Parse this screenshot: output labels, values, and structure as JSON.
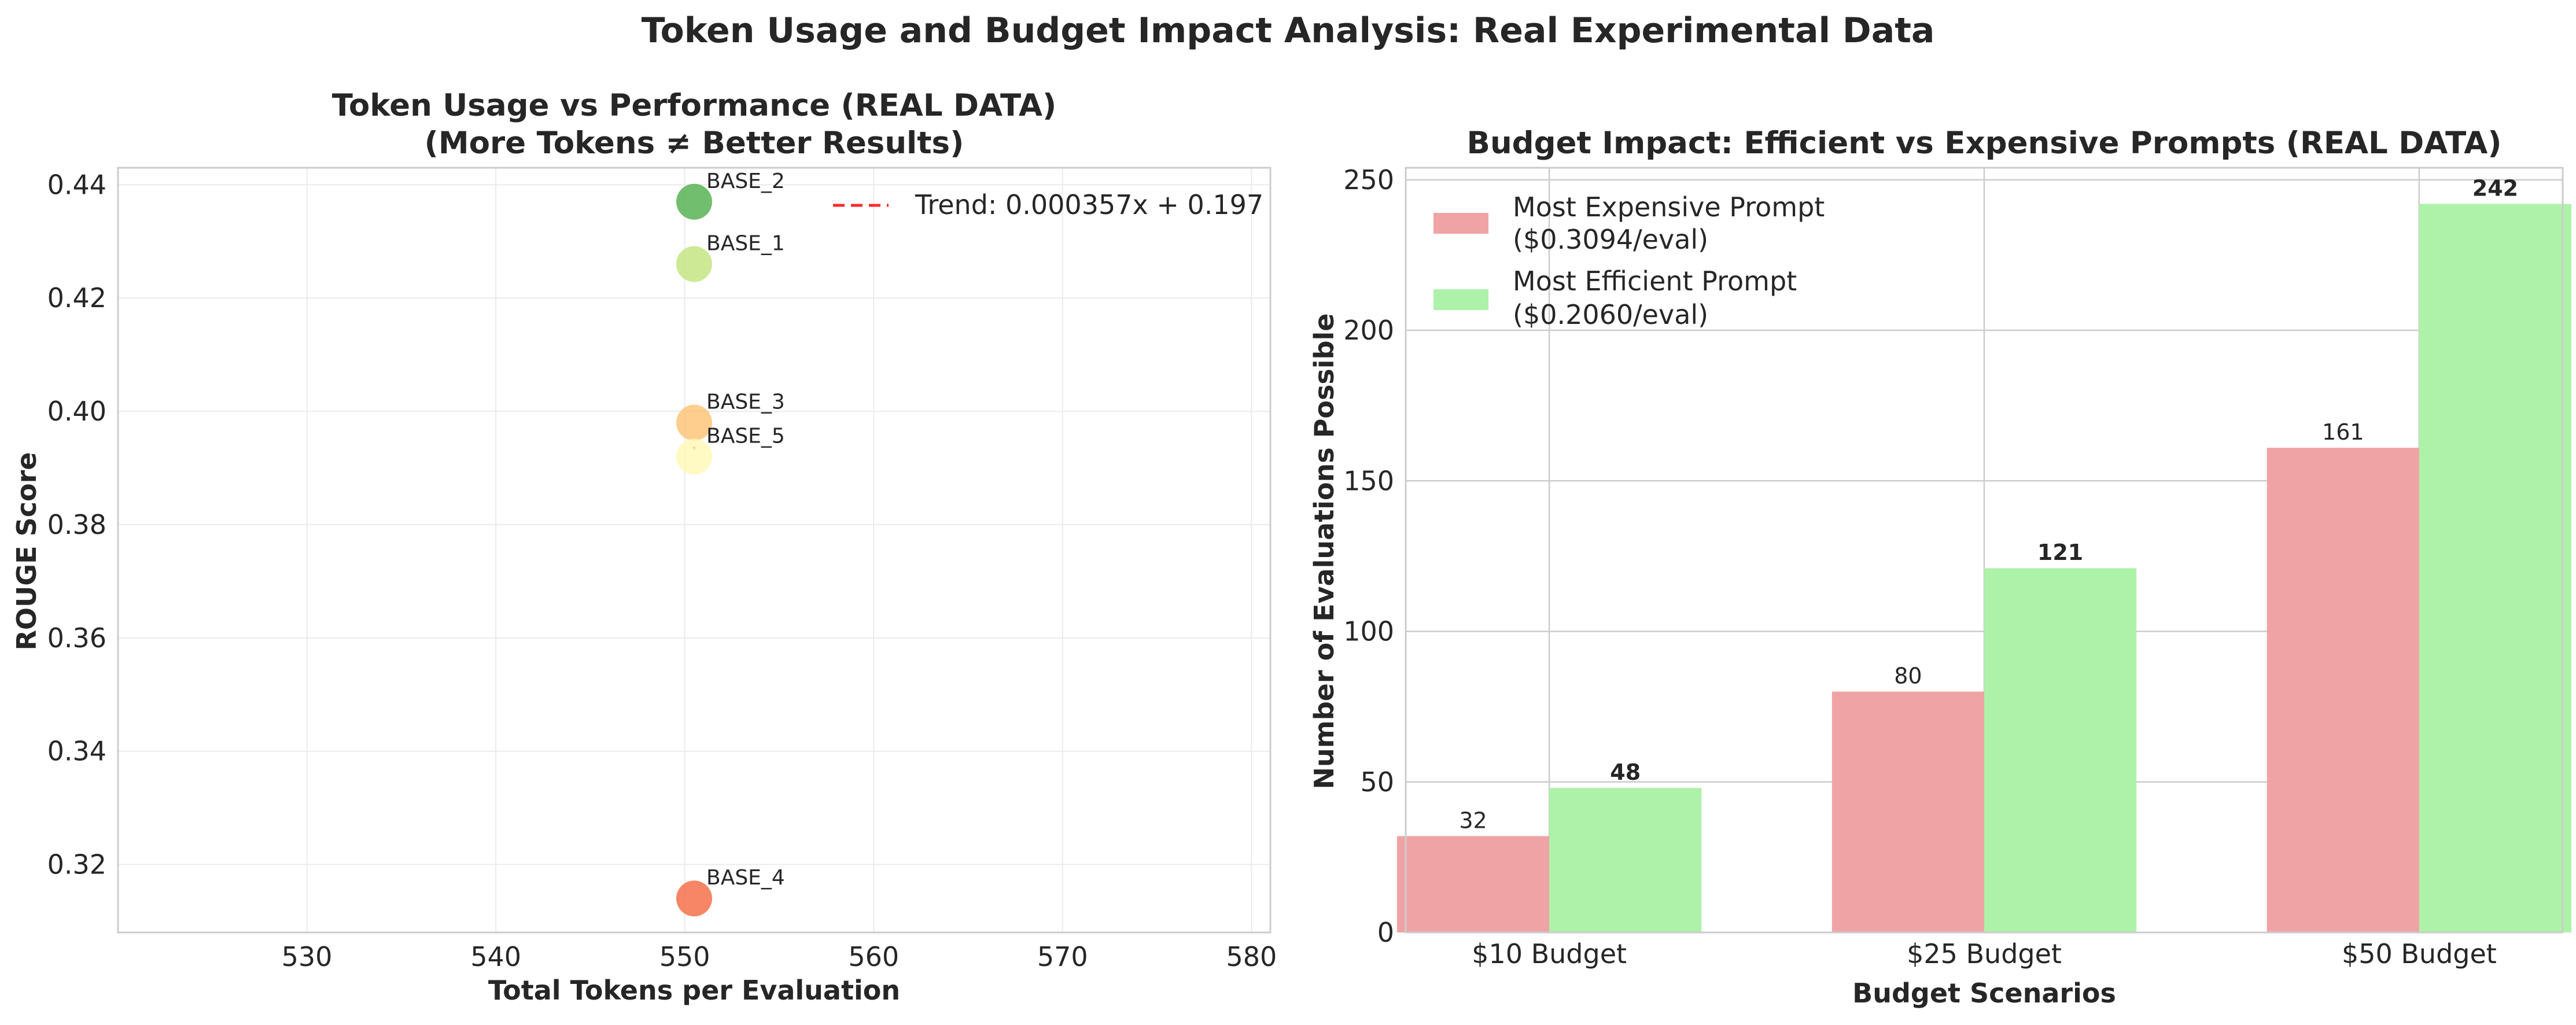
{
  "suptitle": "Token Usage and Budget Impact Analysis: Real Experimental Data",
  "chart_data": [
    {
      "type": "scatter",
      "title": "Token Usage vs Performance (REAL DATA)",
      "subtitle": "(More Tokens ≠ Better Results)",
      "xlabel": "Total Tokens per Evaluation",
      "ylabel": "ROUGE Score",
      "xlim": [
        520,
        581
      ],
      "ylim": [
        0.308,
        0.443
      ],
      "xticks": [
        530,
        540,
        550,
        560,
        570,
        580
      ],
      "yticks": [
        0.32,
        0.34,
        0.36,
        0.38,
        0.4,
        0.42,
        0.44
      ],
      "ytick_labels": [
        "0.32",
        "0.34",
        "0.36",
        "0.38",
        "0.40",
        "0.42",
        "0.44"
      ],
      "grid": true,
      "legend_position": "top-right",
      "points": [
        {
          "label": "BASE_2",
          "x": 550.5,
          "y": 0.437,
          "color": "#4daf4a"
        },
        {
          "label": "BASE_1",
          "x": 550.5,
          "y": 0.426,
          "color": "#c2e37b"
        },
        {
          "label": "BASE_3",
          "x": 550.5,
          "y": 0.398,
          "color": "#fcc271"
        },
        {
          "label": "BASE_5",
          "x": 550.5,
          "y": 0.392,
          "color": "#fff7b5"
        },
        {
          "label": "BASE_4",
          "x": 550.5,
          "y": 0.314,
          "color": "#f4683e"
        }
      ],
      "trend": {
        "label": "Trend: 0.000357x + 0.197",
        "slope": 0.000357,
        "intercept": 0.197,
        "color": "#ff2b2b"
      }
    },
    {
      "type": "bar",
      "title": "Budget Impact: Efficient vs Expensive Prompts (REAL DATA)",
      "xlabel": "Budget Scenarios",
      "ylabel": "Number of Evaluations Possible",
      "categories": [
        "$10 Budget",
        "$25 Budget",
        "$50 Budget"
      ],
      "ylim": [
        0,
        254
      ],
      "yticks": [
        0,
        50,
        100,
        150,
        200,
        250
      ],
      "grid": true,
      "legend_position": "top-left",
      "series": [
        {
          "name_line1": "Most Expensive Prompt",
          "name_line2": "($0.3094/eval)",
          "values": [
            32,
            80,
            161
          ],
          "color": "#f0a3a5",
          "label_bold": false
        },
        {
          "name_line1": "Most Efficient Prompt",
          "name_line2": "($0.2060/eval)",
          "values": [
            48,
            121,
            242
          ],
          "color": "#aef2aa",
          "label_bold": true
        }
      ]
    }
  ]
}
